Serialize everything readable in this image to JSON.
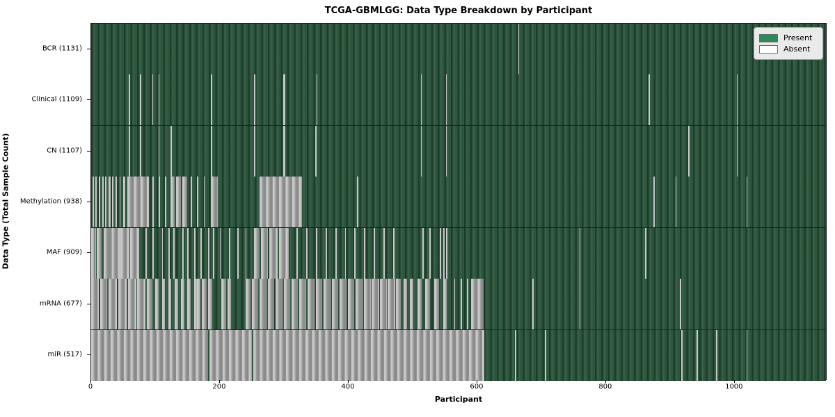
{
  "figure": {
    "title": "TCGA-GBMLGG: Data Type Breakdown by Participant",
    "xlabel": "Participant",
    "ylabel": "Data Type (Total Sample Count)"
  },
  "legend": {
    "present_label": "Present",
    "absent_label": "Absent",
    "present_color": "#2e8b57",
    "absent_color": "#ffffff"
  },
  "chart_data": {
    "type": "heatmap",
    "subtype": "presence-absence-matrix",
    "title": "TCGA-GBMLGG: Data Type Breakdown by Participant",
    "xlabel": "Participant",
    "ylabel": "Data Type (Total Sample Count)",
    "x_ticks": [
      0,
      200,
      400,
      600,
      800,
      1000
    ],
    "x_max": 1144,
    "n_participants": 1131,
    "present_color": "#2f5a40",
    "absent_color": "#9b9b9b",
    "legend_position": "upper right",
    "rows": [
      {
        "name": "BCR",
        "total": 1131,
        "label": "BCR (1131)",
        "absent_segments": [
          [
            665,
            666.5
          ]
        ]
      },
      {
        "name": "Clinical",
        "total": 1109,
        "label": "Clinical (1109)",
        "absent_segments": [
          [
            59,
            60.5
          ],
          [
            76,
            77.5
          ],
          [
            95,
            96.5
          ],
          [
            105,
            106.5
          ],
          [
            186,
            189
          ],
          [
            254,
            255.5
          ],
          [
            299,
            302
          ],
          [
            351,
            352.5
          ],
          [
            513,
            514.5
          ],
          [
            552,
            553.5
          ],
          [
            868,
            870
          ],
          [
            1005,
            1006.5
          ]
        ]
      },
      {
        "name": "CN",
        "total": 1107,
        "label": "CN (1107)",
        "absent_segments": [
          [
            59,
            60.5
          ],
          [
            76,
            77.5
          ],
          [
            105,
            106.5
          ],
          [
            124,
            125.5
          ],
          [
            186,
            189
          ],
          [
            254,
            255.5
          ],
          [
            299,
            302
          ],
          [
            349,
            350.5
          ],
          [
            513,
            515
          ],
          [
            552,
            553.5
          ],
          [
            930,
            931.5
          ],
          [
            1005,
            1006.5
          ]
        ]
      },
      {
        "name": "Methylation",
        "total": 938,
        "label": "Methylation (938)",
        "absent_segments": [
          [
            2,
            4
          ],
          [
            7,
            9
          ],
          [
            12,
            14
          ],
          [
            17,
            19
          ],
          [
            22,
            24
          ],
          [
            27,
            30
          ],
          [
            33,
            35
          ],
          [
            38,
            40
          ],
          [
            44,
            46
          ],
          [
            50,
            53
          ],
          [
            56,
            90
          ],
          [
            95,
            97
          ],
          [
            105,
            107
          ],
          [
            115,
            117
          ],
          [
            124,
            130
          ],
          [
            132,
            140
          ],
          [
            142,
            150
          ],
          [
            155,
            157
          ],
          [
            165,
            167
          ],
          [
            175,
            177
          ],
          [
            186,
            197
          ],
          [
            262,
            328
          ],
          [
            414,
            415.5
          ],
          [
            875,
            877
          ],
          [
            910,
            911.5
          ],
          [
            1020,
            1021.5
          ]
        ]
      },
      {
        "name": "MAF",
        "total": 909,
        "label": "MAF (909)",
        "absent_segments": [
          [
            0,
            5
          ],
          [
            6,
            8
          ],
          [
            9,
            16
          ],
          [
            20,
            30
          ],
          [
            31,
            45
          ],
          [
            46,
            60
          ],
          [
            61,
            75
          ],
          [
            85,
            87
          ],
          [
            95,
            97
          ],
          [
            110,
            112
          ],
          [
            120,
            122
          ],
          [
            128,
            130
          ],
          [
            142,
            144
          ],
          [
            150,
            152
          ],
          [
            160,
            162
          ],
          [
            170,
            172
          ],
          [
            182,
            184
          ],
          [
            190,
            192
          ],
          [
            200,
            202
          ],
          [
            215,
            217
          ],
          [
            228,
            230
          ],
          [
            240,
            242
          ],
          [
            254,
            262
          ],
          [
            264,
            275
          ],
          [
            277,
            290
          ],
          [
            292,
            308
          ],
          [
            320,
            322
          ],
          [
            335,
            337
          ],
          [
            350,
            352
          ],
          [
            365,
            367
          ],
          [
            380,
            382
          ],
          [
            395,
            397
          ],
          [
            410,
            412
          ],
          [
            425,
            427
          ],
          [
            440,
            442
          ],
          [
            455,
            457
          ],
          [
            470,
            472
          ],
          [
            516,
            518
          ],
          [
            527,
            529
          ],
          [
            543,
            545
          ],
          [
            548,
            550
          ],
          [
            553,
            555
          ],
          [
            760,
            762
          ],
          [
            862,
            864
          ]
        ]
      },
      {
        "name": "mRNA",
        "total": 677,
        "label": "mRNA (677)",
        "absent_segments": [
          [
            0,
            12
          ],
          [
            14,
            25
          ],
          [
            27,
            40
          ],
          [
            42,
            55
          ],
          [
            57,
            70
          ],
          [
            72,
            85
          ],
          [
            87,
            95
          ],
          [
            100,
            105
          ],
          [
            110,
            115
          ],
          [
            120,
            125
          ],
          [
            130,
            135
          ],
          [
            140,
            145
          ],
          [
            150,
            155
          ],
          [
            160,
            165
          ],
          [
            165,
            170
          ],
          [
            172,
            180
          ],
          [
            182,
            189
          ],
          [
            203,
            210
          ],
          [
            212,
            218
          ],
          [
            240,
            248
          ],
          [
            250,
            260
          ],
          [
            262,
            273
          ],
          [
            275,
            285
          ],
          [
            287,
            298
          ],
          [
            300,
            310
          ],
          [
            312,
            322
          ],
          [
            324,
            335
          ],
          [
            337,
            348
          ],
          [
            350,
            360
          ],
          [
            362,
            373
          ],
          [
            375,
            385
          ],
          [
            387,
            398
          ],
          [
            400,
            410
          ],
          [
            412,
            423
          ],
          [
            425,
            435
          ],
          [
            437,
            448
          ],
          [
            450,
            460
          ],
          [
            462,
            473
          ],
          [
            475,
            482
          ],
          [
            486,
            492
          ],
          [
            496,
            502
          ],
          [
            508,
            515
          ],
          [
            520,
            528
          ],
          [
            534,
            542
          ],
          [
            548,
            554
          ],
          [
            565,
            567
          ],
          [
            575,
            577
          ],
          [
            585,
            587
          ],
          [
            592,
            611
          ],
          [
            687,
            689
          ],
          [
            760,
            762
          ],
          [
            917,
            919
          ]
        ]
      },
      {
        "name": "miR",
        "total": 517,
        "label": "miR (517)",
        "absent_segments": [
          [
            0,
            182
          ],
          [
            184,
            250
          ],
          [
            252,
            612
          ],
          [
            660,
            662
          ],
          [
            706,
            708
          ],
          [
            919,
            921
          ],
          [
            943,
            945
          ],
          [
            973,
            975
          ],
          [
            1020,
            1022
          ]
        ]
      }
    ]
  }
}
